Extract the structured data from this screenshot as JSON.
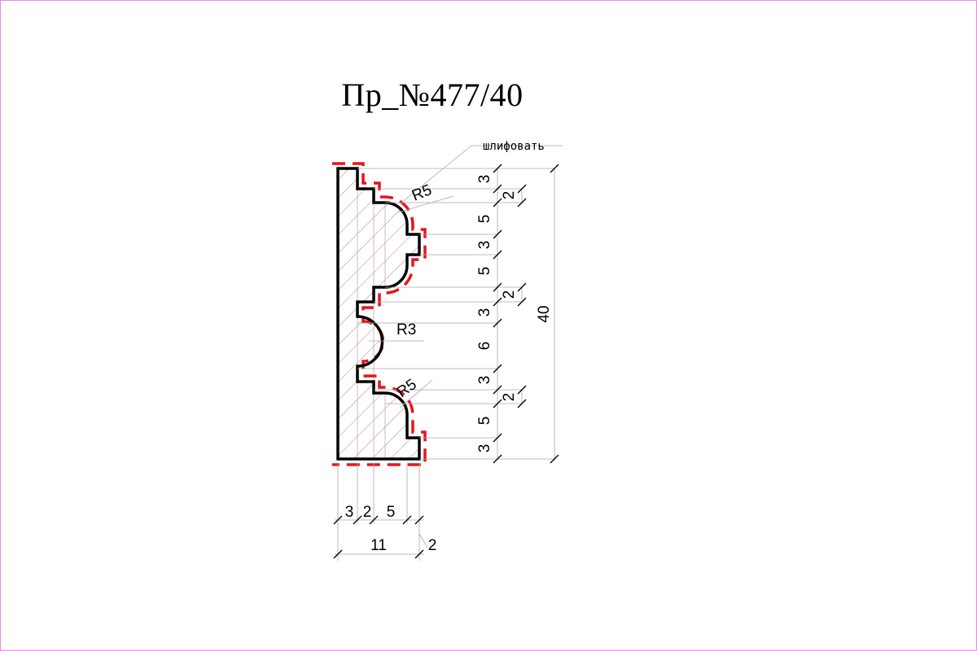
{
  "title": "Пр_№477/40",
  "note": "шлифовать",
  "radii": [
    "R5",
    "R3",
    "R5"
  ],
  "height_dims": [
    "3",
    "5",
    "3",
    "5",
    "3",
    "6",
    "3",
    "5",
    "3"
  ],
  "step_dims": [
    "2",
    "2",
    "2"
  ],
  "total_height": "40",
  "width_dims": [
    "3",
    "2",
    "5"
  ],
  "total_width": "11",
  "offset_width": "2",
  "colors": {
    "profile": "#000000",
    "sanding": "#e8141b",
    "hatch": "#b07f7f",
    "frame": "#e58be6",
    "dimension": "#9a9a9a"
  }
}
